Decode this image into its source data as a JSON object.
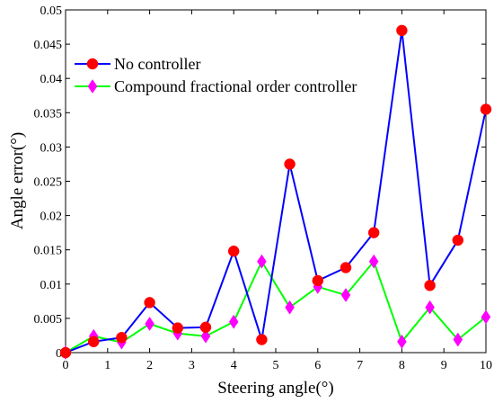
{
  "chart_data": {
    "type": "line",
    "title": "",
    "xlabel": "Steering angle(°)",
    "ylabel": "Angle error(°)",
    "xlim": [
      0,
      10
    ],
    "ylim": [
      0,
      0.05
    ],
    "x_ticks": [
      "0",
      "1",
      "2",
      "3",
      "4",
      "5",
      "6",
      "7",
      "8",
      "9",
      "10"
    ],
    "y_ticks": [
      "0",
      "0.005",
      "0.01",
      "0.015",
      "0.02",
      "0.025",
      "0.03",
      "0.035",
      "0.04",
      "0.045",
      "0.05"
    ],
    "grid": false,
    "legend_position": "top-left",
    "x": [
      0,
      0.667,
      1.333,
      2.0,
      2.667,
      3.333,
      4.0,
      4.667,
      5.333,
      6.0,
      6.667,
      7.333,
      8.0,
      8.667,
      9.333,
      10.0
    ],
    "series": [
      {
        "name": "No controller",
        "line_color": "#0000ff",
        "marker": "circle",
        "marker_color": "#ff0000",
        "values": [
          0.0,
          0.0016,
          0.0022,
          0.0073,
          0.0036,
          0.0037,
          0.0148,
          0.0019,
          0.0275,
          0.0105,
          0.0124,
          0.0175,
          0.047,
          0.0098,
          0.0164,
          0.0355
        ]
      },
      {
        "name": "Compound fractional order controller",
        "line_color": "#00ff00",
        "marker": "diamond",
        "marker_color": "#ff00ff",
        "values": [
          0.0,
          0.0024,
          0.0015,
          0.0042,
          0.0028,
          0.0024,
          0.0045,
          0.0133,
          0.0066,
          0.0096,
          0.0084,
          0.0133,
          0.0016,
          0.0066,
          0.0019,
          0.0052
        ]
      }
    ]
  }
}
